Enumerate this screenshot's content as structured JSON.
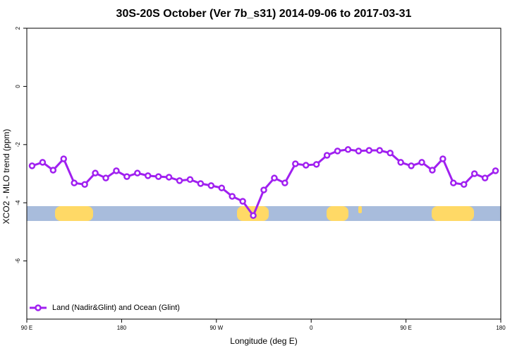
{
  "chart_data": {
    "type": "line",
    "title": "30S-20S October (Ver 7b_s31)   2014-09-06 to 2017-03-31",
    "x_label": "Longitude (deg E)",
    "y_label": "XCO2 - MLO trend (ppm)",
    "x": [
      95,
      105,
      115,
      125,
      135,
      145,
      155,
      165,
      175,
      185,
      195,
      205,
      215,
      225,
      235,
      245,
      255,
      265,
      275,
      285,
      295,
      305,
      315,
      325,
      335,
      345,
      355,
      365,
      375,
      385,
      395,
      405,
      415,
      425,
      435,
      445,
      455,
      465,
      475,
      485,
      495,
      505,
      515,
      525,
      535
    ],
    "series": [
      {
        "name": "Land (Nadir&Glint) and Ocean (Glint)",
        "color": "#a020f0",
        "values": [
          -2.73,
          -2.61,
          -2.88,
          -2.49,
          -3.32,
          -3.37,
          -2.98,
          -3.15,
          -2.9,
          -3.1,
          -2.98,
          -3.07,
          -3.1,
          -3.12,
          -3.24,
          -3.2,
          -3.34,
          -3.41,
          -3.49,
          -3.78,
          -3.95,
          -4.44,
          -3.56,
          -3.15,
          -3.32,
          -2.66,
          -2.71,
          -2.68,
          -2.37,
          -2.22,
          -2.17,
          -2.22,
          -2.2,
          -2.2,
          -2.29,
          -2.61,
          -2.73,
          -2.61,
          -2.88,
          -2.49,
          -3.32,
          -3.37,
          -3,
          -3.15,
          -2.9
        ]
      }
    ],
    "xlim": [
      90,
      540
    ],
    "xticks": [
      {
        "value": 90,
        "label": "90 E"
      },
      {
        "value": 180,
        "label": "180"
      },
      {
        "value": 270,
        "label": "90 W"
      },
      {
        "value": 360,
        "label": "0"
      },
      {
        "value": 450,
        "label": "90 E"
      },
      {
        "value": 540,
        "label": "180"
      }
    ],
    "ylim": [
      -8,
      2
    ],
    "yticks": [
      -6,
      -4,
      -2,
      0,
      2
    ],
    "legend": "bottom-left"
  }
}
